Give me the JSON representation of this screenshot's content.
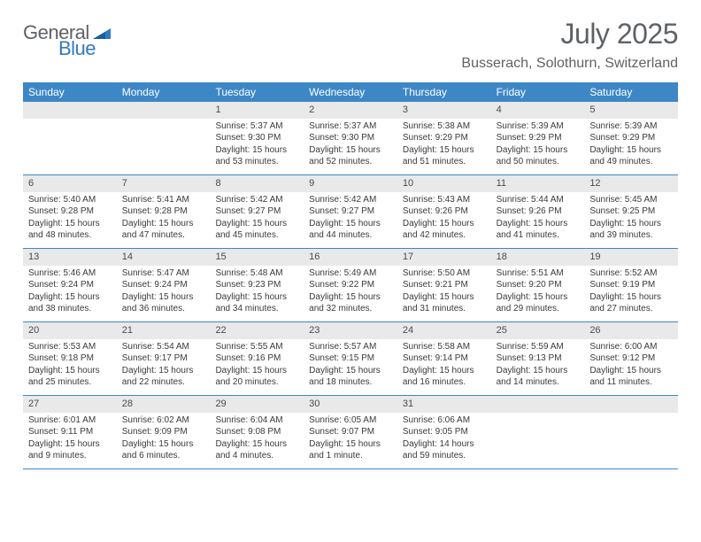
{
  "logo": {
    "line1": "General",
    "line2": "Blue"
  },
  "title": "July 2025",
  "location": "Busserach, Solothurn, Switzerland",
  "colors": {
    "header_bg": "#3d87c7",
    "header_text": "#ffffff",
    "daynum_bg": "#e9e9e9",
    "text": "#3a3a3a",
    "title_text": "#5e6266",
    "logo_gray": "#5e6266",
    "logo_blue": "#2f7bbf",
    "rule": "#3d87c7"
  },
  "day_headers": [
    "Sunday",
    "Monday",
    "Tuesday",
    "Wednesday",
    "Thursday",
    "Friday",
    "Saturday"
  ],
  "weeks": [
    [
      {
        "empty": true
      },
      {
        "empty": true
      },
      {
        "num": "1",
        "sunrise": "Sunrise: 5:37 AM",
        "sunset": "Sunset: 9:30 PM",
        "daylight": "Daylight: 15 hours and 53 minutes."
      },
      {
        "num": "2",
        "sunrise": "Sunrise: 5:37 AM",
        "sunset": "Sunset: 9:30 PM",
        "daylight": "Daylight: 15 hours and 52 minutes."
      },
      {
        "num": "3",
        "sunrise": "Sunrise: 5:38 AM",
        "sunset": "Sunset: 9:29 PM",
        "daylight": "Daylight: 15 hours and 51 minutes."
      },
      {
        "num": "4",
        "sunrise": "Sunrise: 5:39 AM",
        "sunset": "Sunset: 9:29 PM",
        "daylight": "Daylight: 15 hours and 50 minutes."
      },
      {
        "num": "5",
        "sunrise": "Sunrise: 5:39 AM",
        "sunset": "Sunset: 9:29 PM",
        "daylight": "Daylight: 15 hours and 49 minutes."
      }
    ],
    [
      {
        "num": "6",
        "sunrise": "Sunrise: 5:40 AM",
        "sunset": "Sunset: 9:28 PM",
        "daylight": "Daylight: 15 hours and 48 minutes."
      },
      {
        "num": "7",
        "sunrise": "Sunrise: 5:41 AM",
        "sunset": "Sunset: 9:28 PM",
        "daylight": "Daylight: 15 hours and 47 minutes."
      },
      {
        "num": "8",
        "sunrise": "Sunrise: 5:42 AM",
        "sunset": "Sunset: 9:27 PM",
        "daylight": "Daylight: 15 hours and 45 minutes."
      },
      {
        "num": "9",
        "sunrise": "Sunrise: 5:42 AM",
        "sunset": "Sunset: 9:27 PM",
        "daylight": "Daylight: 15 hours and 44 minutes."
      },
      {
        "num": "10",
        "sunrise": "Sunrise: 5:43 AM",
        "sunset": "Sunset: 9:26 PM",
        "daylight": "Daylight: 15 hours and 42 minutes."
      },
      {
        "num": "11",
        "sunrise": "Sunrise: 5:44 AM",
        "sunset": "Sunset: 9:26 PM",
        "daylight": "Daylight: 15 hours and 41 minutes."
      },
      {
        "num": "12",
        "sunrise": "Sunrise: 5:45 AM",
        "sunset": "Sunset: 9:25 PM",
        "daylight": "Daylight: 15 hours and 39 minutes."
      }
    ],
    [
      {
        "num": "13",
        "sunrise": "Sunrise: 5:46 AM",
        "sunset": "Sunset: 9:24 PM",
        "daylight": "Daylight: 15 hours and 38 minutes."
      },
      {
        "num": "14",
        "sunrise": "Sunrise: 5:47 AM",
        "sunset": "Sunset: 9:24 PM",
        "daylight": "Daylight: 15 hours and 36 minutes."
      },
      {
        "num": "15",
        "sunrise": "Sunrise: 5:48 AM",
        "sunset": "Sunset: 9:23 PM",
        "daylight": "Daylight: 15 hours and 34 minutes."
      },
      {
        "num": "16",
        "sunrise": "Sunrise: 5:49 AM",
        "sunset": "Sunset: 9:22 PM",
        "daylight": "Daylight: 15 hours and 32 minutes."
      },
      {
        "num": "17",
        "sunrise": "Sunrise: 5:50 AM",
        "sunset": "Sunset: 9:21 PM",
        "daylight": "Daylight: 15 hours and 31 minutes."
      },
      {
        "num": "18",
        "sunrise": "Sunrise: 5:51 AM",
        "sunset": "Sunset: 9:20 PM",
        "daylight": "Daylight: 15 hours and 29 minutes."
      },
      {
        "num": "19",
        "sunrise": "Sunrise: 5:52 AM",
        "sunset": "Sunset: 9:19 PM",
        "daylight": "Daylight: 15 hours and 27 minutes."
      }
    ],
    [
      {
        "num": "20",
        "sunrise": "Sunrise: 5:53 AM",
        "sunset": "Sunset: 9:18 PM",
        "daylight": "Daylight: 15 hours and 25 minutes."
      },
      {
        "num": "21",
        "sunrise": "Sunrise: 5:54 AM",
        "sunset": "Sunset: 9:17 PM",
        "daylight": "Daylight: 15 hours and 22 minutes."
      },
      {
        "num": "22",
        "sunrise": "Sunrise: 5:55 AM",
        "sunset": "Sunset: 9:16 PM",
        "daylight": "Daylight: 15 hours and 20 minutes."
      },
      {
        "num": "23",
        "sunrise": "Sunrise: 5:57 AM",
        "sunset": "Sunset: 9:15 PM",
        "daylight": "Daylight: 15 hours and 18 minutes."
      },
      {
        "num": "24",
        "sunrise": "Sunrise: 5:58 AM",
        "sunset": "Sunset: 9:14 PM",
        "daylight": "Daylight: 15 hours and 16 minutes."
      },
      {
        "num": "25",
        "sunrise": "Sunrise: 5:59 AM",
        "sunset": "Sunset: 9:13 PM",
        "daylight": "Daylight: 15 hours and 14 minutes."
      },
      {
        "num": "26",
        "sunrise": "Sunrise: 6:00 AM",
        "sunset": "Sunset: 9:12 PM",
        "daylight": "Daylight: 15 hours and 11 minutes."
      }
    ],
    [
      {
        "num": "27",
        "sunrise": "Sunrise: 6:01 AM",
        "sunset": "Sunset: 9:11 PM",
        "daylight": "Daylight: 15 hours and 9 minutes."
      },
      {
        "num": "28",
        "sunrise": "Sunrise: 6:02 AM",
        "sunset": "Sunset: 9:09 PM",
        "daylight": "Daylight: 15 hours and 6 minutes."
      },
      {
        "num": "29",
        "sunrise": "Sunrise: 6:04 AM",
        "sunset": "Sunset: 9:08 PM",
        "daylight": "Daylight: 15 hours and 4 minutes."
      },
      {
        "num": "30",
        "sunrise": "Sunrise: 6:05 AM",
        "sunset": "Sunset: 9:07 PM",
        "daylight": "Daylight: 15 hours and 1 minute."
      },
      {
        "num": "31",
        "sunrise": "Sunrise: 6:06 AM",
        "sunset": "Sunset: 9:05 PM",
        "daylight": "Daylight: 14 hours and 59 minutes."
      },
      {
        "empty": true
      },
      {
        "empty": true
      }
    ]
  ]
}
